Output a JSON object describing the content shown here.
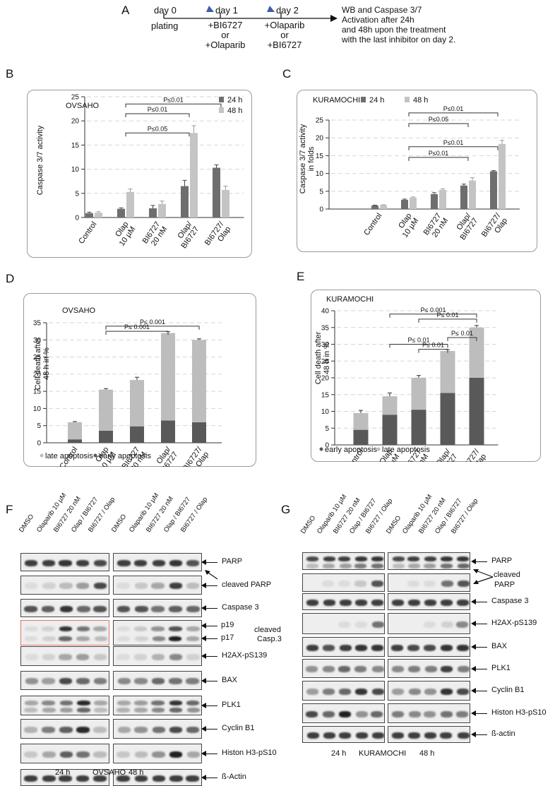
{
  "panel_a": {
    "label": "A",
    "day0": "day 0",
    "day0_sub": "plating",
    "day1": "day 1",
    "day1_sub": [
      "+BI6727",
      "or",
      "+Olaparib"
    ],
    "day2": "day 2",
    "day2_sub": [
      "+Olaparib",
      "or",
      "+BI6727"
    ],
    "note": [
      "WB and Caspase 3/7",
      "Activation after 24h",
      "and 48h upon the treatment",
      "with the last inhibitor on day 2."
    ]
  },
  "chart_data": [
    {
      "id": "B",
      "type": "bar",
      "title": "OVSAHO",
      "ylabel": "Caspase 3/7 activity",
      "ylim": [
        0,
        25
      ],
      "yticks": [
        0,
        5,
        10,
        15,
        20,
        25
      ],
      "grid": true,
      "categories": [
        [
          "Control"
        ],
        [
          "Olap",
          "10 µM"
        ],
        [
          "BI6727",
          "20 nM"
        ],
        [
          "Olap/",
          "BI6727"
        ],
        [
          "BI6727/",
          "Olap"
        ]
      ],
      "series": [
        {
          "name": "24 h",
          "color": "#6e6e6e",
          "values": [
            0.9,
            1.8,
            1.9,
            6.5,
            10.3
          ],
          "err": [
            0.2,
            0.2,
            0.6,
            1.2,
            0.6
          ]
        },
        {
          "name": "48 h",
          "color": "#c4c4c4",
          "values": [
            1.0,
            5.3,
            2.8,
            17.5,
            5.7
          ],
          "err": [
            0.2,
            0.6,
            0.6,
            1.5,
            0.8
          ]
        }
      ],
      "pvalues": [
        {
          "label": "P≤0.01",
          "from": 1,
          "to": 4,
          "y": 23.5
        },
        {
          "label": "P≤0.01",
          "from": 1,
          "to": 3,
          "y": 21.5
        },
        {
          "label": "P≤0.05",
          "from": 1,
          "to": 3,
          "y": 17.5
        }
      ],
      "legend": "top-right"
    },
    {
      "id": "C",
      "type": "bar",
      "title": "KURAMOCHI",
      "ylabel": [
        "Caspase 3/7 activity",
        "in folds"
      ],
      "ylim": [
        0,
        25
      ],
      "yticks": [
        0,
        5,
        10,
        15,
        20,
        25
      ],
      "grid": true,
      "categories": [
        [
          "Control"
        ],
        [
          "Olap",
          "10 µM"
        ],
        [
          "BI6727",
          "20 nM"
        ],
        [
          "Olap/",
          "BI6727"
        ],
        [
          "BI6727/",
          "Olap"
        ]
      ],
      "series": [
        {
          "name": "24 h",
          "color": "#6e6e6e",
          "values": [
            1.0,
            2.6,
            4.2,
            6.6,
            10.6
          ],
          "err": [
            0.1,
            0.2,
            0.4,
            0.4,
            0.2
          ]
        },
        {
          "name": "48 h",
          "color": "#c4c4c4",
          "values": [
            1.1,
            3.2,
            5.4,
            8.0,
            18.3
          ],
          "err": [
            0.1,
            0.2,
            0.3,
            0.8,
            1.0
          ]
        }
      ],
      "pvalues": [
        {
          "label": "P≤0.01",
          "from": 1,
          "to": 4,
          "y": 27
        },
        {
          "label": "P≤0.05",
          "from": 1,
          "to": 3,
          "y": 24
        },
        {
          "label": "P≤0.01",
          "from": 1,
          "to": 4,
          "y": 17.5
        },
        {
          "label": "P≤0.01",
          "from": 1,
          "to": 3,
          "y": 14.5
        }
      ],
      "legend": "top"
    },
    {
      "id": "D",
      "type": "bar",
      "stacked": true,
      "title": "OVSAHO",
      "ylabel": [
        "Cell death after",
        "48 h in %"
      ],
      "ylim": [
        0,
        35
      ],
      "yticks": [
        0,
        5,
        10,
        15,
        20,
        25,
        30,
        35
      ],
      "grid": true,
      "categories": [
        [
          "Control"
        ],
        [
          "Olap",
          "10 µM"
        ],
        [
          "BI6727",
          "20 nM"
        ],
        [
          "Olap/",
          "BI6727"
        ],
        [
          "BI6727/",
          "Olap"
        ]
      ],
      "series": [
        {
          "name": "early apoptosis",
          "color": "#595959",
          "values": [
            1.0,
            3.5,
            4.8,
            6.5,
            6.0
          ]
        },
        {
          "name": "late apoptosis",
          "color": "#bdbdbd",
          "values": [
            5.0,
            12.0,
            13.5,
            25.5,
            24.0
          ],
          "err": [
            0.2,
            0.3,
            0.8,
            0.4,
            0.3
          ]
        }
      ],
      "pvalues": [
        {
          "label": "P≤ 0.001",
          "from": 1,
          "to": 4,
          "y": 34
        },
        {
          "label": "P≤ 0.001",
          "from": 1,
          "to": 3,
          "y": 32.5
        }
      ],
      "legend": "bottom"
    },
    {
      "id": "E",
      "type": "bar",
      "stacked": true,
      "title": "KURAMOCHI",
      "ylabel": [
        "Cell death after",
        "48 h in %"
      ],
      "ylim": [
        0,
        40
      ],
      "yticks": [
        0,
        5,
        10,
        15,
        20,
        25,
        30,
        35,
        40
      ],
      "grid": true,
      "categories": [
        [
          "Control"
        ],
        [
          "Olap",
          "10 µM"
        ],
        [
          "BI6727",
          "20 nM"
        ],
        [
          "Olap/",
          "BI6727"
        ],
        [
          "BI6727/",
          "Olap"
        ]
      ],
      "series": [
        {
          "name": "early apoptosis",
          "color": "#595959",
          "values": [
            4.5,
            9.0,
            10.5,
            15.5,
            20.0
          ]
        },
        {
          "name": "late apoptosis",
          "color": "#bdbdbd",
          "values": [
            5.0,
            5.5,
            9.5,
            12.5,
            15.0
          ],
          "err": [
            0.8,
            1.0,
            0.7,
            0.4,
            0.6
          ]
        }
      ],
      "pvalues": [
        {
          "label": "P≤ 0.001",
          "from": 1,
          "to": 4,
          "y": 39
        },
        {
          "label": "P≤ 0.01",
          "from": 2,
          "to": 4,
          "y": 37.5
        },
        {
          "label": "P≤ 0.01",
          "from": 3,
          "to": 4,
          "y": 32
        },
        {
          "label": "P≤ 0.01",
          "from": 1,
          "to": 3,
          "y": 30
        },
        {
          "label": "P≤ 0.01",
          "from": 2,
          "to": 3,
          "y": 28.5
        }
      ],
      "legend": "bottom"
    }
  ],
  "blot_f": {
    "label": "F",
    "lanes": [
      "DMSO",
      "Olaparib 10 µM",
      "BI6727 20 nM",
      "Olap / BI6727",
      "BI6727 / Olap"
    ],
    "rows": [
      "PARP",
      "cleaved PARP",
      "Caspase 3",
      "",
      "H2AX-pS139",
      "BAX",
      "PLK1",
      "Cyclin B1",
      "Histon H3-pS10",
      "ß-Actin"
    ],
    "casp_p19": "p19",
    "casp_p17": "p17",
    "casp_cleaved": "cleaved",
    "casp_name": "Casp.3",
    "foot_24": "24 h",
    "foot_48": "48 h",
    "foot_cell": "OVSAHO"
  },
  "blot_g": {
    "label": "G",
    "lanes": [
      "DMSO",
      "Olaparib 10 µM",
      "BI6727 20 nM",
      "Olap / BI6727",
      "BI6727 / Olap"
    ],
    "rows": [
      "PARP",
      "",
      "Caspase 3",
      "H2AX-pS139",
      "BAX",
      "PLK1",
      "Cyclin B1",
      "Histon H3-pS10",
      "ß-actin"
    ],
    "cleaved_parp": [
      "cleaved",
      "PARP"
    ],
    "foot_24": "24 h",
    "foot_48": "48 h",
    "foot_cell": "KURAMOCHI"
  }
}
